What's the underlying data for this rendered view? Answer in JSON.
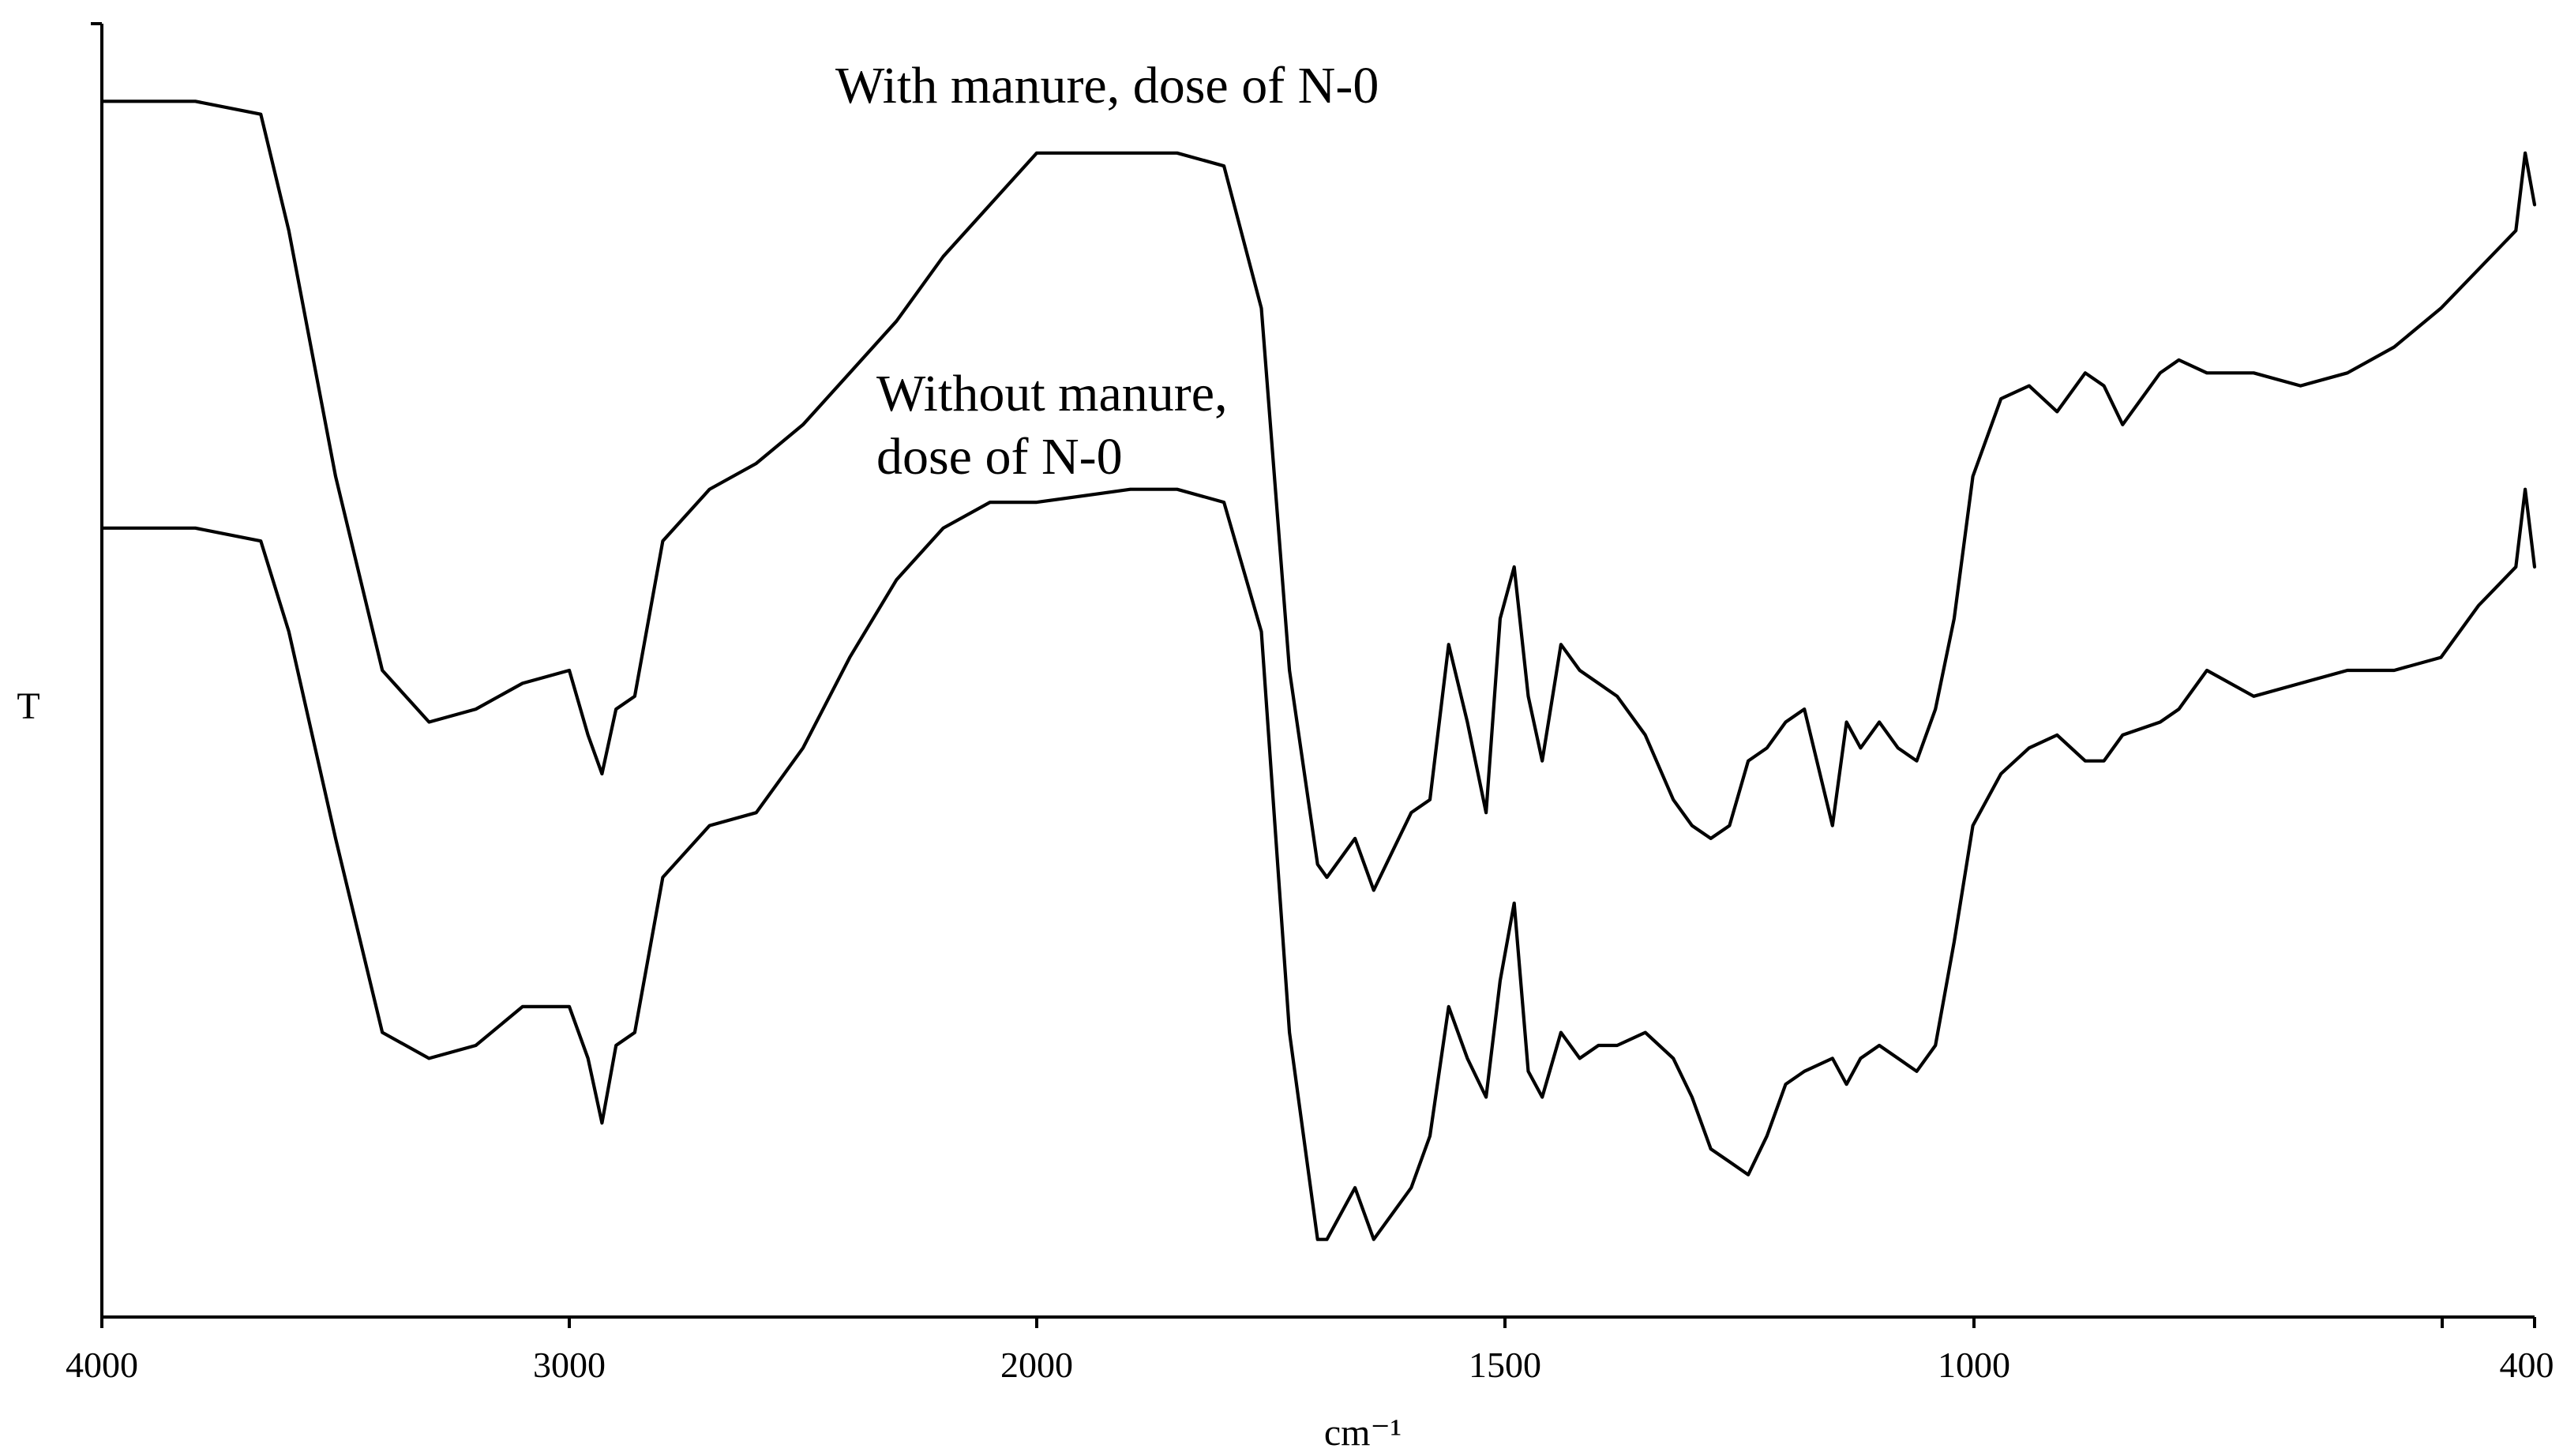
{
  "chart_data": {
    "type": "line",
    "title": "",
    "xlabel": "cm⁻¹",
    "ylabel": "T",
    "xlim": [
      4000,
      400
    ],
    "x_scale": "piecewise (4000–2000 and 2000–400 at different scales)",
    "x_ticks": [
      "4000",
      "3000",
      "2000",
      "1500",
      "1000",
      "400"
    ],
    "grid": false,
    "legend": "none",
    "annotations": [
      {
        "text": "With manure, dose of N-0",
        "series": "With manure, dose of N-0"
      },
      {
        "text": "Without manure,",
        "series": "Without manure, dose of N-0"
      },
      {
        "text": "dose of N-0",
        "series": "Without manure, dose of N-0"
      }
    ],
    "series": [
      {
        "name": "With manure, dose of N-0",
        "color": "#000000",
        "x": [
          4000,
          3800,
          3660,
          3600,
          3500,
          3400,
          3300,
          3200,
          3100,
          3000,
          2960,
          2930,
          2900,
          2860,
          2800,
          2700,
          2600,
          2500,
          2400,
          2300,
          2200,
          2100,
          2000,
          1900,
          1850,
          1800,
          1760,
          1730,
          1700,
          1690,
          1660,
          1640,
          1620,
          1600,
          1580,
          1560,
          1540,
          1520,
          1505,
          1490,
          1475,
          1460,
          1440,
          1420,
          1400,
          1380,
          1350,
          1320,
          1300,
          1280,
          1260,
          1240,
          1220,
          1200,
          1180,
          1150,
          1135,
          1120,
          1100,
          1080,
          1060,
          1040,
          1020,
          1000,
          970,
          940,
          910,
          880,
          860,
          840,
          800,
          780,
          750,
          700,
          650,
          600,
          550,
          500,
          460,
          420,
          410,
          400
        ],
        "y": [
          94,
          94,
          93,
          84,
          65,
          50,
          46,
          47,
          49,
          50,
          45,
          42,
          47,
          48,
          60,
          64,
          66,
          69,
          73,
          77,
          82,
          86,
          90,
          90,
          90,
          89,
          78,
          50,
          35,
          34,
          37,
          33,
          36,
          39,
          40,
          52,
          46,
          39,
          54,
          58,
          48,
          43,
          52,
          50,
          49,
          48,
          45,
          40,
          38,
          37,
          38,
          43,
          44,
          46,
          47,
          38,
          46,
          44,
          46,
          44,
          43,
          47,
          54,
          65,
          71,
          72,
          70,
          73,
          72,
          69,
          73,
          74,
          73,
          73,
          72,
          73,
          75,
          78,
          81,
          84,
          90,
          86
        ],
        "stroke_width": 4.2
      },
      {
        "name": "Without manure, dose of N-0",
        "color": "#000000",
        "x": [
          4000,
          3800,
          3660,
          3600,
          3500,
          3400,
          3300,
          3200,
          3100,
          3000,
          2960,
          2930,
          2900,
          2860,
          2800,
          2700,
          2600,
          2500,
          2400,
          2300,
          2200,
          2100,
          2000,
          1900,
          1850,
          1800,
          1760,
          1730,
          1700,
          1690,
          1660,
          1640,
          1620,
          1600,
          1580,
          1560,
          1540,
          1520,
          1505,
          1490,
          1475,
          1460,
          1440,
          1420,
          1400,
          1380,
          1350,
          1320,
          1300,
          1280,
          1260,
          1240,
          1220,
          1200,
          1180,
          1150,
          1135,
          1120,
          1100,
          1080,
          1060,
          1040,
          1020,
          1000,
          970,
          940,
          910,
          880,
          860,
          840,
          800,
          780,
          750,
          700,
          650,
          600,
          550,
          500,
          460,
          420,
          410,
          400
        ],
        "y": [
          61,
          61,
          60,
          53,
          37,
          22,
          20,
          21,
          24,
          24,
          20,
          15,
          21,
          22,
          34,
          38,
          39,
          44,
          51,
          57,
          61,
          63,
          63,
          64,
          64,
          63,
          53,
          22,
          6,
          6,
          10,
          6,
          8,
          10,
          14,
          24,
          20,
          17,
          26,
          32,
          19,
          17,
          22,
          20,
          21,
          21,
          22,
          20,
          17,
          13,
          12,
          11,
          14,
          18,
          19,
          20,
          18,
          20,
          21,
          20,
          19,
          21,
          29,
          38,
          42,
          44,
          45,
          43,
          43,
          45,
          46,
          47,
          50,
          48,
          49,
          50,
          50,
          51,
          55,
          58,
          64,
          58
        ],
        "stroke_width": 4.2
      }
    ]
  }
}
